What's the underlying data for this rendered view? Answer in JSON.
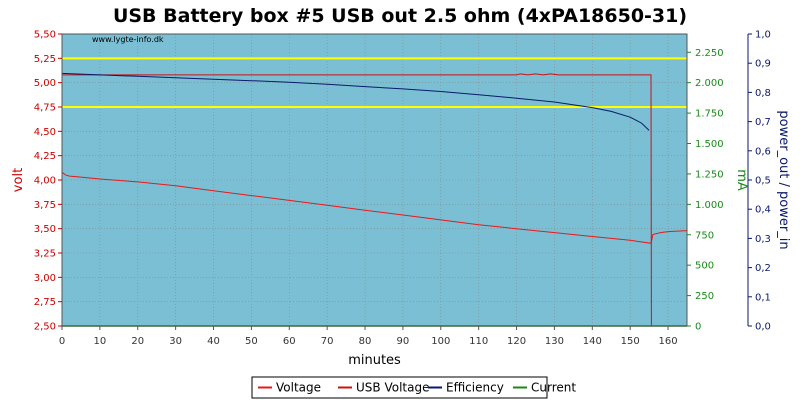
{
  "chart_data": {
    "type": "line",
    "title": "USB Battery box #5 USB out 2.5 ohm (4xPA18650-31)",
    "watermark": "www.lygte-info.dk",
    "xlabel": "minutes",
    "ylabel_left": "volt",
    "ylabel_right1": "mA",
    "ylabel_right2": "power_out / power_in",
    "xlim": [
      0,
      165
    ],
    "ylim_left": [
      2.5,
      5.5
    ],
    "ylim_right1": [
      0,
      2400
    ],
    "ylim_right2": [
      0,
      1.0
    ],
    "x_ticks": [
      0,
      10,
      20,
      30,
      40,
      50,
      60,
      70,
      80,
      90,
      100,
      110,
      120,
      130,
      140,
      150,
      160
    ],
    "x_tick_labels": [
      "0",
      "10",
      "20",
      "30",
      "40",
      "50",
      "60",
      "70",
      "80",
      "90",
      "100",
      "110",
      "120",
      "130",
      "140",
      "150",
      "160"
    ],
    "left_ticks": [
      2.5,
      2.75,
      3.0,
      3.25,
      3.5,
      3.75,
      4.0,
      4.25,
      4.5,
      4.75,
      5.0,
      5.25,
      5.5
    ],
    "left_tick_labels": [
      "2,50",
      "2,75",
      "3,00",
      "3,25",
      "3,50",
      "3,75",
      "4,00",
      "4,25",
      "4,50",
      "4,75",
      "5,00",
      "5,25",
      "5,50"
    ],
    "right1_ticks": [
      0,
      250,
      500,
      750,
      1000,
      1250,
      1500,
      1750,
      2000,
      2250
    ],
    "right1_tick_labels": [
      "0",
      "250",
      "500",
      "750",
      "1.000",
      "1.250",
      "1.500",
      "1.750",
      "2.000",
      "2.250"
    ],
    "right2_ticks": [
      0,
      0.1,
      0.2,
      0.3,
      0.4,
      0.5,
      0.6,
      0.7,
      0.8,
      0.9,
      1.0
    ],
    "right2_tick_labels": [
      "0,0",
      "0,1",
      "0,2",
      "0,3",
      "0,4",
      "0,5",
      "0,6",
      "0,7",
      "0,8",
      "0,9",
      "1,0"
    ],
    "grid": true,
    "colors": {
      "background": "#7bbfd4",
      "grid": "#8a8a8a",
      "voltage": "#e8191a",
      "usb_voltage": "#cc1111",
      "efficiency": "#0a1a6b",
      "current": "#1a8a1a",
      "limit_lines": "#ffff00",
      "left_axis": "#cc0000",
      "right1_axis": "#1a8a1a",
      "right2_axis": "#0a1a6b"
    },
    "reference_lines_volt": [
      5.25,
      4.75
    ],
    "series": [
      {
        "name": "Voltage",
        "axis": "left",
        "x": [
          0,
          1,
          2,
          5,
          10,
          20,
          30,
          40,
          50,
          60,
          70,
          80,
          90,
          100,
          110,
          120,
          130,
          140,
          150,
          155.5,
          156,
          158,
          160,
          165
        ],
        "y": [
          4.08,
          4.05,
          4.04,
          4.03,
          4.01,
          3.98,
          3.94,
          3.89,
          3.84,
          3.79,
          3.74,
          3.69,
          3.64,
          3.59,
          3.54,
          3.5,
          3.46,
          3.42,
          3.38,
          3.35,
          3.44,
          3.46,
          3.47,
          3.48
        ]
      },
      {
        "name": "USB Voltage",
        "axis": "left",
        "x": [
          0,
          120,
          121,
          123,
          125,
          127,
          129,
          131,
          155.5,
          155.6,
          165
        ],
        "y": [
          5.08,
          5.08,
          5.09,
          5.08,
          5.09,
          5.08,
          5.09,
          5.08,
          5.08,
          2.5,
          2.5
        ]
      },
      {
        "name": "Efficiency",
        "axis": "right2",
        "x": [
          0,
          10,
          20,
          30,
          40,
          50,
          60,
          70,
          80,
          90,
          100,
          110,
          120,
          130,
          140,
          145,
          150,
          153,
          155
        ],
        "y": [
          0.865,
          0.86,
          0.855,
          0.85,
          0.845,
          0.84,
          0.835,
          0.828,
          0.82,
          0.812,
          0.803,
          0.792,
          0.78,
          0.767,
          0.748,
          0.735,
          0.715,
          0.695,
          0.67
        ]
      },
      {
        "name": "Current",
        "axis": "right1",
        "x": [
          0,
          155.5,
          165
        ],
        "y": [
          0,
          0,
          0
        ]
      }
    ],
    "legend": {
      "placement": "bottom-center",
      "entries": [
        "Voltage",
        "USB Voltage",
        "Efficiency",
        "Current"
      ]
    }
  }
}
